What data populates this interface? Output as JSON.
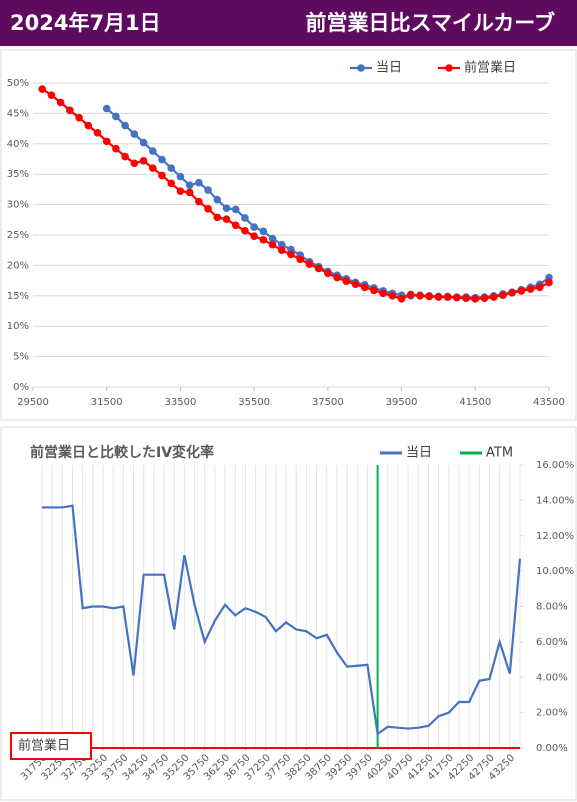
{
  "header": {
    "date": "2024年7月1日",
    "title": "前営業日比スマイルカーブ"
  },
  "chart_data": [
    {
      "type": "scatter-line",
      "xlim": [
        29500,
        43500
      ],
      "xticks": [
        29500,
        31500,
        33500,
        35500,
        37500,
        39500,
        41500,
        43500
      ],
      "ylim": [
        0,
        50
      ],
      "yticks": [
        {
          "value": 0,
          "label": "0%"
        },
        {
          "value": 5,
          "label": "5%"
        },
        {
          "value": 10,
          "label": "10%"
        },
        {
          "value": 15,
          "label": "15%"
        },
        {
          "value": 20,
          "label": "20%"
        },
        {
          "value": 25,
          "label": "25%"
        },
        {
          "value": 30,
          "label": "30%"
        },
        {
          "value": 35,
          "label": "35%"
        },
        {
          "value": 40,
          "label": "40%"
        },
        {
          "value": 45,
          "label": "45%"
        },
        {
          "value": 50,
          "label": "50%"
        }
      ],
      "grid": true,
      "legend": "top-right",
      "series": [
        {
          "name": "当日",
          "color": "#4472c4",
          "x": [
            31500,
            31750,
            32000,
            32250,
            32500,
            32750,
            33000,
            33250,
            33500,
            33750,
            34000,
            34250,
            34500,
            34750,
            35000,
            35250,
            35500,
            35750,
            36000,
            36250,
            36500,
            36750,
            37000,
            37250,
            37500,
            37750,
            38000,
            38250,
            38500,
            38750,
            39000,
            39250,
            39500,
            39750,
            40000,
            40250,
            40500,
            40750,
            41000,
            41250,
            41500,
            41750,
            42000,
            42250,
            42500,
            42750,
            43000,
            43250,
            43500
          ],
          "values": [
            45.8,
            44.5,
            43.0,
            41.6,
            40.2,
            38.8,
            37.4,
            36.0,
            34.6,
            33.2,
            33.6,
            32.4,
            30.8,
            29.4,
            29.2,
            27.8,
            26.3,
            25.6,
            24.4,
            23.4,
            22.6,
            21.7,
            20.6,
            19.8,
            19.0,
            18.4,
            17.8,
            17.2,
            16.8,
            16.3,
            15.8,
            15.4,
            15.1,
            15.0,
            15.1,
            15.0,
            14.9,
            14.9,
            14.8,
            14.8,
            14.7,
            14.8,
            15.0,
            15.3,
            15.6,
            16.0,
            16.4,
            16.9,
            18.0
          ]
        },
        {
          "name": "前営業日",
          "color": "#ff0000",
          "x": [
            29750,
            30000,
            30250,
            30500,
            30750,
            31000,
            31250,
            31500,
            31750,
            32000,
            32250,
            32500,
            32750,
            33000,
            33250,
            33500,
            33750,
            34000,
            34250,
            34500,
            34750,
            35000,
            35250,
            35500,
            35750,
            36000,
            36250,
            36500,
            36750,
            37000,
            37250,
            37500,
            37750,
            38000,
            38250,
            38500,
            38750,
            39000,
            39250,
            39500,
            39750,
            40000,
            40250,
            40500,
            40750,
            41000,
            41250,
            41500,
            41750,
            42000,
            42250,
            42500,
            42750,
            43000,
            43250,
            43500
          ],
          "values": [
            49.0,
            48.0,
            46.8,
            45.5,
            44.3,
            43.0,
            41.8,
            40.4,
            39.2,
            37.9,
            36.8,
            37.2,
            36.0,
            34.8,
            33.5,
            32.2,
            32.0,
            30.5,
            29.3,
            27.9,
            27.6,
            26.6,
            25.7,
            24.8,
            24.2,
            23.4,
            22.5,
            21.8,
            21.0,
            20.2,
            19.5,
            18.7,
            18.0,
            17.4,
            16.9,
            16.4,
            15.9,
            15.4,
            15.0,
            14.5,
            15.2,
            15.0,
            14.9,
            14.8,
            14.8,
            14.7,
            14.6,
            14.5,
            14.6,
            14.8,
            15.1,
            15.5,
            15.8,
            16.1,
            16.4,
            17.2
          ]
        }
      ]
    },
    {
      "type": "line",
      "title": "前営業日と比較したIV変化率",
      "x": [
        31750,
        32000,
        32250,
        32500,
        32750,
        33000,
        33250,
        33500,
        33750,
        34000,
        34250,
        34500,
        34750,
        35000,
        35250,
        35500,
        35750,
        36000,
        36250,
        36500,
        36750,
        37000,
        37250,
        37500,
        37750,
        38000,
        38250,
        38500,
        38750,
        39000,
        39250,
        39500,
        39750,
        40000,
        40250,
        40500,
        40750,
        41000,
        41250,
        41500,
        41750,
        42000,
        42250,
        42500,
        42750,
        43000,
        43250,
        43500
      ],
      "xlim": [
        31750,
        43500
      ],
      "xticks": [
        31750,
        32250,
        32750,
        33250,
        33750,
        34250,
        34750,
        35250,
        35750,
        36250,
        36750,
        37250,
        37750,
        38250,
        38750,
        39250,
        39750,
        40250,
        40750,
        41250,
        41750,
        42250,
        42750,
        43250
      ],
      "y2lim": [
        0,
        16
      ],
      "y2ticks": [
        {
          "value": 0,
          "label": "0.00%"
        },
        {
          "value": 2,
          "label": "2.00%"
        },
        {
          "value": 4,
          "label": "4.00%"
        },
        {
          "value": 6,
          "label": "6.00%"
        },
        {
          "value": 8,
          "label": "8.00%"
        },
        {
          "value": 10,
          "label": "10.00%"
        },
        {
          "value": 12,
          "label": "12.00%"
        },
        {
          "value": 14,
          "label": "14.00%"
        },
        {
          "value": 16,
          "label": "16.00%"
        }
      ],
      "grid": true,
      "legend": "top-right",
      "series": [
        {
          "name": "当日",
          "color": "#4472c4",
          "axis": "y2",
          "values": [
            13.6,
            13.6,
            13.6,
            13.7,
            7.9,
            8.0,
            8.0,
            7.9,
            8.0,
            4.1,
            9.8,
            9.8,
            9.8,
            6.7,
            10.9,
            8.1,
            6.0,
            7.2,
            8.1,
            7.5,
            7.9,
            7.7,
            7.4,
            6.6,
            7.1,
            6.7,
            6.6,
            6.2,
            6.4,
            5.4,
            4.6,
            4.65,
            4.7,
            0.8,
            1.2,
            1.15,
            1.1,
            1.15,
            1.25,
            1.8,
            2.0,
            2.6,
            2.6,
            3.8,
            3.9,
            6.0,
            4.2,
            10.7
          ]
        }
      ],
      "vline": {
        "name": "ATM",
        "color": "#00b050",
        "x": 40000
      },
      "baseline": {
        "name": "前営業日",
        "color": "#ff0000",
        "value": 0
      }
    }
  ]
}
